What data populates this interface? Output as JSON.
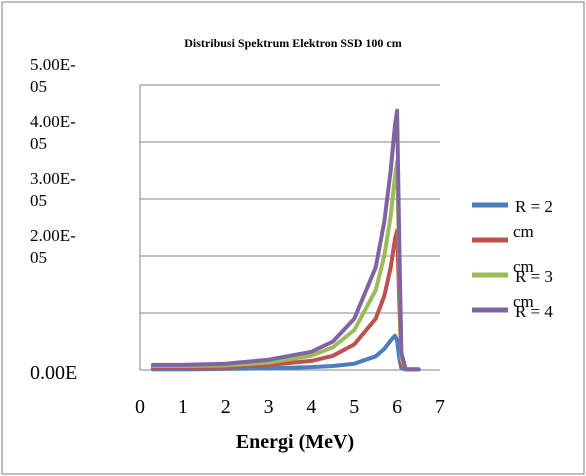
{
  "chart_data": {
    "type": "line",
    "title": "Distribusi Spektrum Elektron SSD 100 cm",
    "xlabel": "Energi (MeV)",
    "ylabel": "",
    "xlim": [
      0,
      7
    ],
    "ylim": [
      0,
      5e-05
    ],
    "x_ticks": [
      "0",
      "1",
      "2",
      "3",
      "4",
      "5",
      "6",
      "7"
    ],
    "y_ticks": [
      {
        "value": 5e-05,
        "line1": "5.00E-",
        "line2": "05"
      },
      {
        "value": 4e-05,
        "line1": "4.00E-",
        "line2": "05"
      },
      {
        "value": 3e-05,
        "line1": "3.00E-",
        "line2": "05"
      },
      {
        "value": 2e-05,
        "line1": "2.00E-",
        "line2": "05"
      },
      {
        "value": 1e-05,
        "line1": "",
        "line2": ""
      },
      {
        "value": 0,
        "line1": "0.00E",
        "line2": ""
      }
    ],
    "grid": true,
    "legend_position": "right",
    "series": [
      {
        "name": "R = 2 cm",
        "legend_lines": [
          "R = 2",
          "cm"
        ],
        "color": "#4a7ebf",
        "x": [
          0.3,
          1.0,
          2.0,
          3.0,
          4.0,
          4.5,
          5.0,
          5.5,
          5.7,
          5.85,
          5.95,
          6.0,
          6.05,
          6.1,
          6.2,
          6.5
        ],
        "y": [
          1e-07,
          1e-07,
          2e-07,
          3e-07,
          5e-07,
          7e-07,
          1.1e-06,
          2.4e-06,
          3.7e-06,
          5.2e-06,
          6e-06,
          5.2e-06,
          2e-06,
          3e-07,
          1e-07,
          1e-07
        ]
      },
      {
        "name": "R = 3 cm",
        "legend_lines": [
          "",
          "cm"
        ],
        "color": "#c0504d",
        "x": [
          0.3,
          1.0,
          2.0,
          3.0,
          4.0,
          4.5,
          5.0,
          5.5,
          5.7,
          5.85,
          5.95,
          6.0,
          6.05,
          6.1,
          6.2,
          6.5
        ],
        "y": [
          4e-07,
          4e-07,
          5e-07,
          9e-07,
          1.6e-06,
          2.5e-06,
          4.5e-06,
          9e-06,
          1.3e-05,
          1.8e-05,
          2.3e-05,
          2.45e-05,
          1.2e-05,
          1e-06,
          1e-07,
          1e-07
        ]
      },
      {
        "name": "R = 3 cm",
        "legend_lines": [
          "R = 3",
          "cm"
        ],
        "color": "#9bbb59",
        "x": [
          0.3,
          1.0,
          2.0,
          3.0,
          4.0,
          4.5,
          5.0,
          5.5,
          5.7,
          5.85,
          5.95,
          6.0,
          6.05,
          6.1,
          6.2,
          6.5
        ],
        "y": [
          7e-07,
          7e-07,
          8e-07,
          1.3e-06,
          2.5e-06,
          4e-06,
          7e-06,
          1.4e-05,
          2e-05,
          2.7e-05,
          3.4e-05,
          3.65e-05,
          1.8e-05,
          2e-06,
          1e-07,
          1e-07
        ]
      },
      {
        "name": "R = 4",
        "legend_lines": [
          "R = 4"
        ],
        "color": "#8064a2",
        "x": [
          0.3,
          1.0,
          2.0,
          3.0,
          4.0,
          4.5,
          5.0,
          5.5,
          5.7,
          5.85,
          5.95,
          6.0,
          6.05,
          6.1,
          6.2,
          6.5
        ],
        "y": [
          9e-07,
          9e-07,
          1.1e-06,
          1.8e-06,
          3.2e-06,
          5e-06,
          9e-06,
          1.8e-05,
          2.6e-05,
          3.5e-05,
          4.3e-05,
          4.55e-05,
          2.2e-05,
          3e-06,
          1e-07,
          1e-07
        ]
      }
    ]
  }
}
